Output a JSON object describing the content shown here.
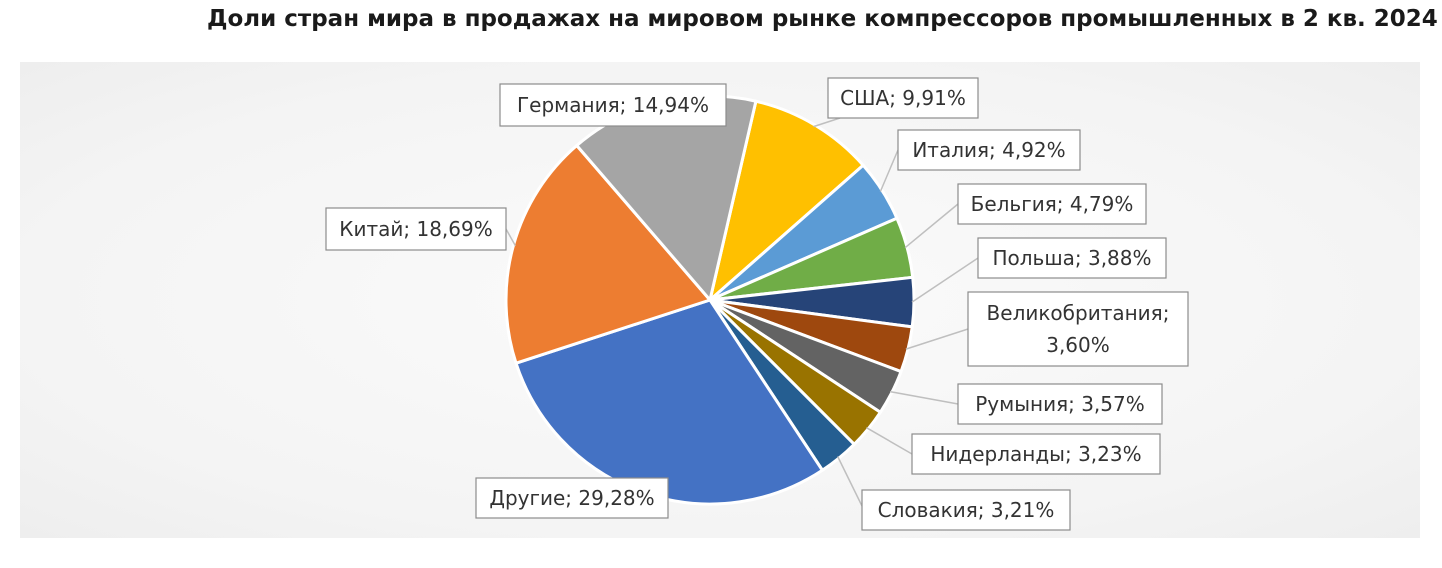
{
  "chart_data": {
    "type": "pie",
    "title": "Доли стран мира в продажах на мировом рынке компрессоров промышленных в 2 кв. 2024",
    "slices": [
      {
        "label": "США; 9,91%",
        "value": 9.91,
        "color": "#FFC000"
      },
      {
        "label": "Италия; 4,92%",
        "value": 4.92,
        "color": "#5B9BD5"
      },
      {
        "label": "Бельгия; 4,79%",
        "value": 4.79,
        "color": "#70AD47"
      },
      {
        "label": "Польша; 3,88%",
        "value": 3.88,
        "color": "#264478"
      },
      {
        "label": "Великобритания; 3,60%",
        "value": 3.6,
        "color": "#9E480E"
      },
      {
        "label": "Румыния; 3,57%",
        "value": 3.57,
        "color": "#636363"
      },
      {
        "label": "Нидерланды; 3,23%",
        "value": 3.23,
        "color": "#997300"
      },
      {
        "label": "Словакия; 3,21%",
        "value": 3.21,
        "color": "#255E91"
      },
      {
        "label": "Другие; 29,28%",
        "value": 29.28,
        "color": "#4472C4"
      },
      {
        "label": "Китай; 18,69%",
        "value": 18.69,
        "color": "#ED7D31"
      },
      {
        "label": "Германия; 14,94%",
        "value": 14.94,
        "color": "#A5A5A5"
      }
    ]
  }
}
